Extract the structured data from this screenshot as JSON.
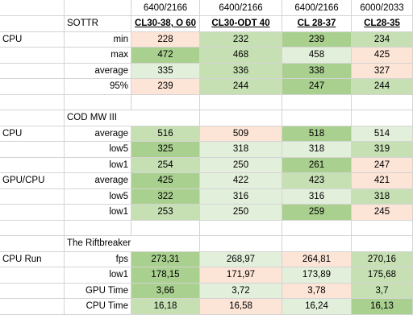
{
  "colors": {
    "neutral": "#ffffff",
    "light_green": "#e2efda",
    "mid_green": "#c6e0b4",
    "strong_green": "#a9d08e",
    "light_red": "#fce4d6"
  },
  "configs": [
    {
      "freq": "6400/2166",
      "timing": "CL30-38, O 60"
    },
    {
      "freq": "6400/2166",
      "timing": "CL30-ODT 40"
    },
    {
      "freq": "6400/2166",
      "timing": "CL 28-37"
    },
    {
      "freq": "6000/2033",
      "timing": "CL28-35"
    }
  ],
  "rows": [
    {
      "type": "header",
      "title": "SOTTR"
    },
    {
      "type": "data",
      "group": "CPU",
      "metric": "min",
      "values": [
        "228",
        "232",
        "239",
        "234"
      ],
      "colors": [
        "light_red",
        "mid_green",
        "strong_green",
        "mid_green"
      ]
    },
    {
      "type": "data",
      "group": "",
      "metric": "max",
      "values": [
        "472",
        "468",
        "458",
        "425"
      ],
      "colors": [
        "strong_green",
        "mid_green",
        "light_green",
        "light_red"
      ]
    },
    {
      "type": "data",
      "group": "",
      "metric": "average",
      "values": [
        "335",
        "336",
        "338",
        "327"
      ],
      "colors": [
        "light_green",
        "mid_green",
        "strong_green",
        "light_red"
      ]
    },
    {
      "type": "data",
      "group": "",
      "metric": "95%",
      "values": [
        "239",
        "244",
        "247",
        "244"
      ],
      "colors": [
        "light_red",
        "mid_green",
        "strong_green",
        "mid_green"
      ]
    },
    {
      "type": "blank"
    },
    {
      "type": "title",
      "title": "COD MW III"
    },
    {
      "type": "data",
      "group": "CPU",
      "metric": "average",
      "values": [
        "516",
        "509",
        "518",
        "514"
      ],
      "colors": [
        "mid_green",
        "light_red",
        "strong_green",
        "light_green"
      ]
    },
    {
      "type": "data",
      "group": "",
      "metric": "low5",
      "values": [
        "325",
        "318",
        "318",
        "319"
      ],
      "colors": [
        "strong_green",
        "light_green",
        "light_green",
        "mid_green"
      ]
    },
    {
      "type": "data",
      "group": "",
      "metric": "low1",
      "values": [
        "254",
        "250",
        "261",
        "247"
      ],
      "colors": [
        "mid_green",
        "light_green",
        "strong_green",
        "light_red"
      ]
    },
    {
      "type": "data",
      "group": "GPU/CPU",
      "metric": "average",
      "values": [
        "425",
        "422",
        "423",
        "421"
      ],
      "colors": [
        "strong_green",
        "light_green",
        "mid_green",
        "light_red"
      ]
    },
    {
      "type": "data",
      "group": "",
      "metric": "low5",
      "values": [
        "322",
        "316",
        "316",
        "318"
      ],
      "colors": [
        "strong_green",
        "light_green",
        "light_green",
        "mid_green"
      ]
    },
    {
      "type": "data",
      "group": "",
      "metric": "low1",
      "values": [
        "253",
        "250",
        "259",
        "245"
      ],
      "colors": [
        "mid_green",
        "light_green",
        "strong_green",
        "light_red"
      ]
    },
    {
      "type": "blank"
    },
    {
      "type": "title",
      "title": "The Riftbreaker"
    },
    {
      "type": "data",
      "group": "CPU Run",
      "metric": "fps",
      "values": [
        "273,31",
        "268,97",
        "264,81",
        "270,16"
      ],
      "colors": [
        "strong_green",
        "light_green",
        "light_red",
        "mid_green"
      ]
    },
    {
      "type": "data",
      "group": "",
      "metric": "low1",
      "values": [
        "178,15",
        "171,97",
        "173,89",
        "175,68"
      ],
      "colors": [
        "strong_green",
        "light_red",
        "light_green",
        "mid_green"
      ]
    },
    {
      "type": "data",
      "group": "",
      "metric": "GPU Time",
      "values": [
        "3,66",
        "3,72",
        "3,78",
        "3,7"
      ],
      "colors": [
        "strong_green",
        "light_green",
        "light_red",
        "mid_green"
      ]
    },
    {
      "type": "data",
      "group": "",
      "metric": "CPU Time",
      "values": [
        "16,18",
        "16,58",
        "16,24",
        "16,13"
      ],
      "colors": [
        "mid_green",
        "light_red",
        "light_green",
        "strong_green"
      ]
    }
  ]
}
